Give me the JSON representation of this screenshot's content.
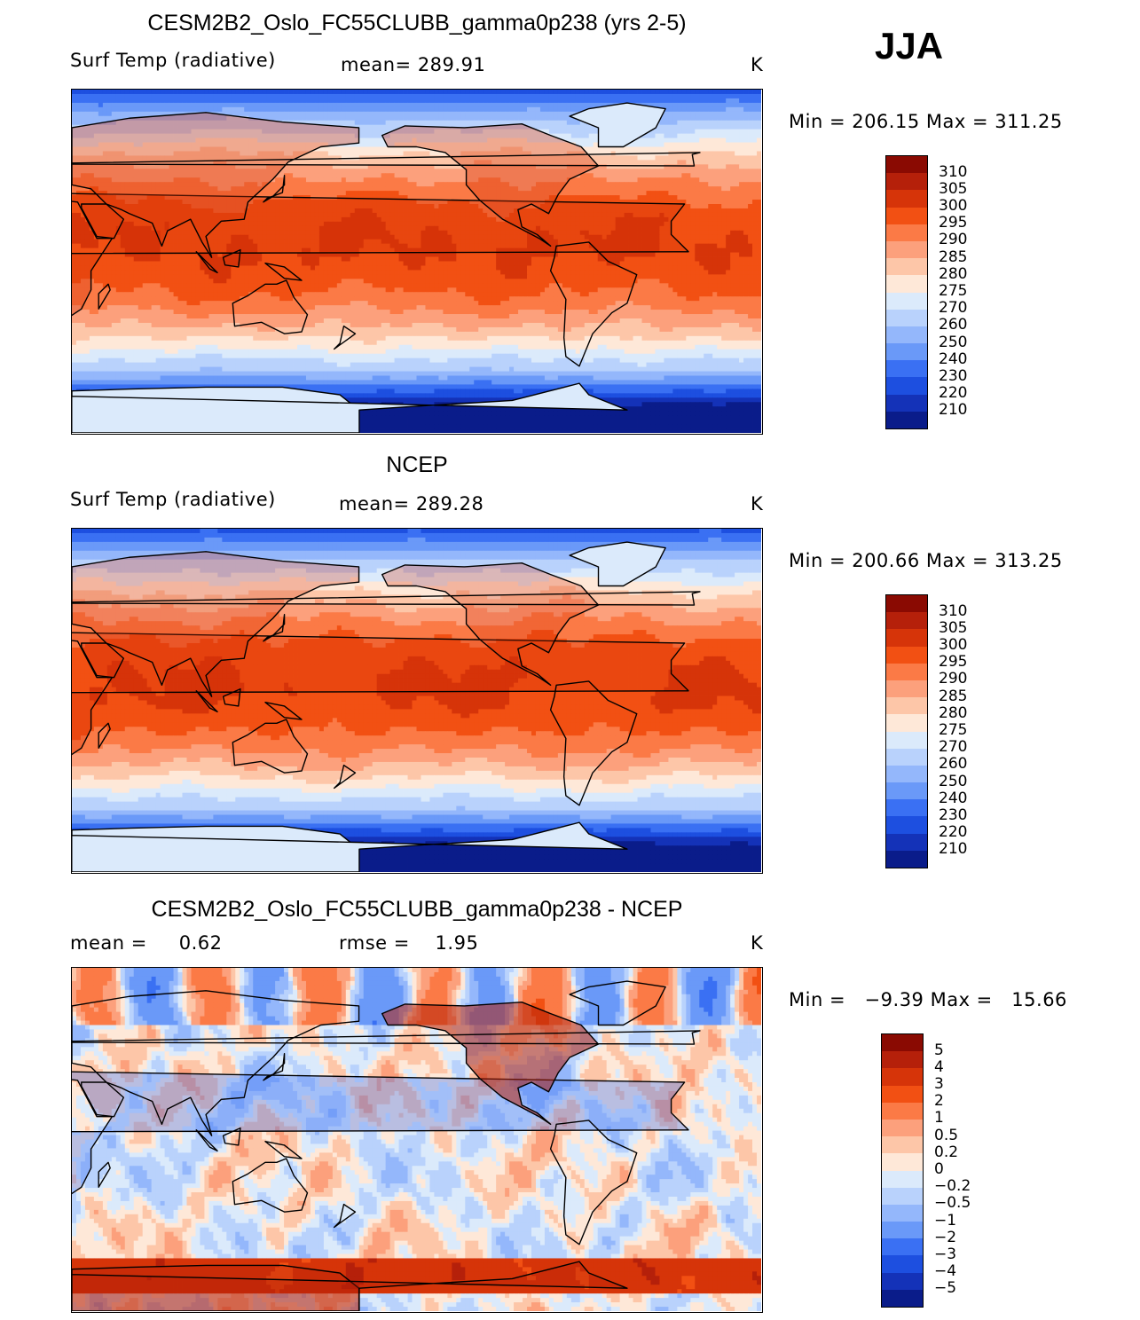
{
  "season": "JJA",
  "panels": [
    {
      "title": "CESM2B2_Oslo_FC55CLUBB_gamma0p238 (yrs 2-5)",
      "left_label": "Surf Temp (radiative)",
      "mid_label": "mean= 289.91",
      "units": "K",
      "minmax": "Min = 206.15 Max = 311.25",
      "levels": [
        "310",
        "305",
        "300",
        "295",
        "290",
        "285",
        "280",
        "275",
        "270",
        "260",
        "250",
        "240",
        "230",
        "220",
        "210"
      ],
      "colors": [
        "#8a0a02",
        "#b5200a",
        "#d63409",
        "#f25013",
        "#fb7a46",
        "#fca07c",
        "#fdc6a8",
        "#fee8d8",
        "#dbeafb",
        "#b9d2fc",
        "#94b7fb",
        "#6a99f8",
        "#3a70f3",
        "#1d4fe0",
        "#1432b8",
        "#0a1c8a"
      ],
      "kind": "abs",
      "land_warm": 1.0
    },
    {
      "title": "NCEP",
      "left_label": "Surf Temp (radiative)",
      "mid_label": "mean= 289.28",
      "units": "K",
      "minmax": "Min = 200.66 Max = 313.25",
      "levels": [
        "310",
        "305",
        "300",
        "295",
        "290",
        "285",
        "280",
        "275",
        "270",
        "260",
        "250",
        "240",
        "230",
        "220",
        "210"
      ],
      "colors": [
        "#8a0a02",
        "#b5200a",
        "#d63409",
        "#f25013",
        "#fb7a46",
        "#fca07c",
        "#fdc6a8",
        "#fee8d8",
        "#dbeafb",
        "#b9d2fc",
        "#94b7fb",
        "#6a99f8",
        "#3a70f3",
        "#1d4fe0",
        "#1432b8",
        "#0a1c8a"
      ],
      "kind": "abs",
      "land_warm": 0.8
    },
    {
      "title": "CESM2B2_Oslo_FC55CLUBB_gamma0p238 - NCEP",
      "left_label": "mean =     0.62",
      "mid_label": "rmse =    1.95",
      "units": "K",
      "minmax": "Min =   −9.39 Max =   15.66",
      "levels": [
        "5",
        "4",
        "3",
        "2",
        "1",
        "0.5",
        "0.2",
        "0",
        "−0.2",
        "−0.5",
        "−1",
        "−2",
        "−3",
        "−4",
        "−5"
      ],
      "colors": [
        "#8a0a02",
        "#b5200a",
        "#d63409",
        "#f25013",
        "#fb7a46",
        "#fca07c",
        "#fdc6a8",
        "#fee8d8",
        "#dbeafb",
        "#b9d2fc",
        "#94b7fb",
        "#6a99f8",
        "#3a70f3",
        "#1d4fe0",
        "#1432b8",
        "#0a1c8a"
      ],
      "kind": "diff",
      "land_warm": 0
    }
  ]
}
